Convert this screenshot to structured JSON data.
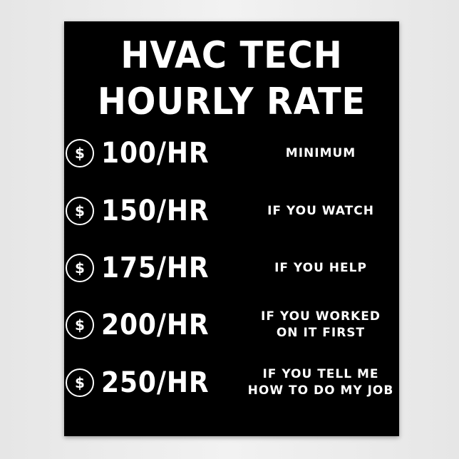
{
  "title": {
    "lines": [
      "HVAC TECH",
      "HOURLY RATE"
    ]
  },
  "rows": [
    {
      "symbol": "$",
      "rate": "100/HR",
      "note": [
        "MINIMUM"
      ]
    },
    {
      "symbol": "$",
      "rate": "150/HR",
      "note": [
        "IF YOU WATCH"
      ]
    },
    {
      "symbol": "$",
      "rate": "175/HR",
      "note": [
        "IF YOU HELP"
      ]
    },
    {
      "symbol": "$",
      "rate": "200/HR",
      "note": [
        "IF YOU WORKED",
        "ON IT FIRST"
      ]
    },
    {
      "symbol": "$",
      "rate": "250/HR",
      "note": [
        "IF YOU TELL ME",
        "HOW TO DO MY JOB"
      ]
    }
  ]
}
